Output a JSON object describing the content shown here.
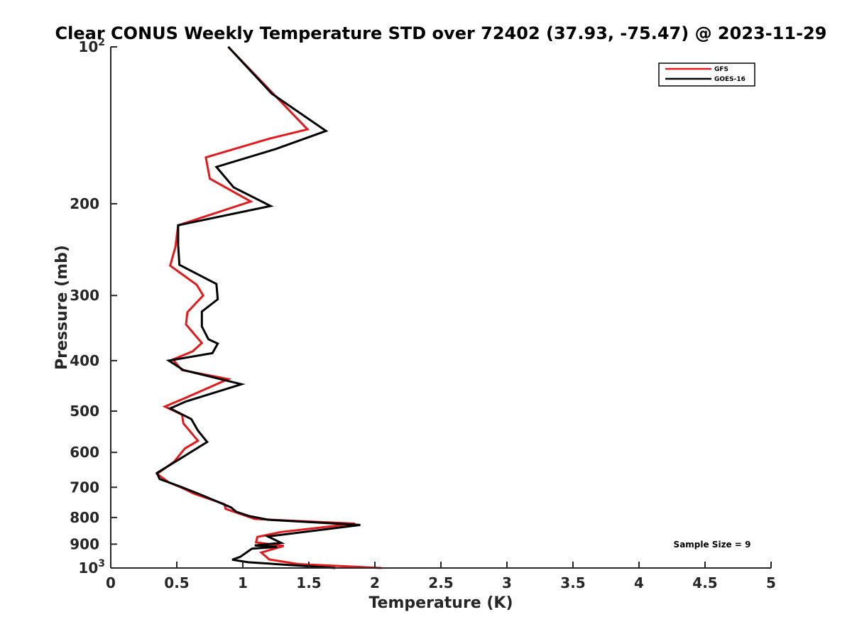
{
  "chart_data": {
    "type": "line",
    "title": "Clear CONUS Weekly Temperature STD over 72402 (37.93, -75.47) @ 2023-11-29",
    "xlabel": "Temperature (K)",
    "ylabel": "Pressure (mb)",
    "xlim": [
      0,
      5
    ],
    "ylim": [
      1000,
      100
    ],
    "y_scale": "log",
    "y_reversed": true,
    "x_ticks": [
      0,
      0.5,
      1,
      1.5,
      2,
      2.5,
      3,
      3.5,
      4,
      4.5,
      5
    ],
    "x_tick_labels": [
      "0",
      "0.5",
      "1",
      "1.5",
      "2",
      "2.5",
      "3",
      "3.5",
      "4",
      "4.5",
      "5"
    ],
    "y_ticks": [
      {
        "value": 100,
        "base": "10",
        "exp": "2"
      },
      {
        "value": 200,
        "label": "200"
      },
      {
        "value": 300,
        "label": "300"
      },
      {
        "value": 400,
        "label": "400"
      },
      {
        "value": 500,
        "label": "500"
      },
      {
        "value": 600,
        "label": "600"
      },
      {
        "value": 700,
        "label": "700"
      },
      {
        "value": 800,
        "label": "800"
      },
      {
        "value": 900,
        "label": "900"
      },
      {
        "value": 1000,
        "base": "10",
        "exp": "3"
      }
    ],
    "grid": false,
    "legend_position": "top-right",
    "annotation": "Sample Size = 9",
    "series": [
      {
        "name": "GFS",
        "color": "#e31a1c",
        "points": [
          [
            0.89,
            100
          ],
          [
            1.19,
            120
          ],
          [
            1.49,
            144
          ],
          [
            1.2,
            150
          ],
          [
            0.72,
            163
          ],
          [
            0.75,
            179
          ],
          [
            1.06,
            198
          ],
          [
            0.51,
            220
          ],
          [
            0.49,
            242
          ],
          [
            0.45,
            263
          ],
          [
            0.65,
            286
          ],
          [
            0.7,
            300
          ],
          [
            0.58,
            323
          ],
          [
            0.57,
            341
          ],
          [
            0.69,
            370
          ],
          [
            0.62,
            384
          ],
          [
            0.47,
            398
          ],
          [
            0.54,
            417
          ],
          [
            0.89,
            434
          ],
          [
            0.58,
            470
          ],
          [
            0.41,
            490
          ],
          [
            0.54,
            508
          ],
          [
            0.55,
            528
          ],
          [
            0.66,
            570
          ],
          [
            0.56,
            590
          ],
          [
            0.48,
            625
          ],
          [
            0.35,
            660
          ],
          [
            0.44,
            685
          ],
          [
            0.53,
            700
          ],
          [
            0.63,
            720
          ],
          [
            0.86,
            754
          ],
          [
            0.87,
            770
          ],
          [
            1.09,
            805
          ],
          [
            1.85,
            822
          ],
          [
            1.29,
            853
          ],
          [
            1.11,
            872
          ],
          [
            1.1,
            893
          ],
          [
            1.31,
            907
          ],
          [
            1.14,
            934
          ],
          [
            1.2,
            963
          ],
          [
            1.42,
            983
          ],
          [
            2.05,
            1000
          ]
        ]
      },
      {
        "name": "GOES-16",
        "color": "#000000",
        "points": [
          [
            0.89,
            100
          ],
          [
            1.22,
            123
          ],
          [
            1.63,
            145
          ],
          [
            1.25,
            157
          ],
          [
            0.8,
            170
          ],
          [
            0.93,
            186
          ],
          [
            1.21,
            202
          ],
          [
            0.51,
            220
          ],
          [
            0.51,
            240
          ],
          [
            0.52,
            262
          ],
          [
            0.8,
            285
          ],
          [
            0.81,
            305
          ],
          [
            0.69,
            322
          ],
          [
            0.69,
            344
          ],
          [
            0.74,
            364
          ],
          [
            0.81,
            371
          ],
          [
            0.77,
            387
          ],
          [
            0.44,
            400
          ],
          [
            0.55,
            417
          ],
          [
            0.99,
            444
          ],
          [
            0.57,
            479
          ],
          [
            0.45,
            494
          ],
          [
            0.61,
            518
          ],
          [
            0.66,
            545
          ],
          [
            0.73,
            573
          ],
          [
            0.49,
            625
          ],
          [
            0.35,
            657
          ],
          [
            0.37,
            675
          ],
          [
            0.52,
            697
          ],
          [
            0.68,
            723
          ],
          [
            0.91,
            765
          ],
          [
            0.95,
            780
          ],
          [
            1.05,
            795
          ],
          [
            1.19,
            808
          ],
          [
            1.89,
            827
          ],
          [
            1.19,
            870
          ],
          [
            1.29,
            895
          ],
          [
            1.09,
            905
          ],
          [
            1.26,
            911
          ],
          [
            1.07,
            918
          ],
          [
            0.98,
            952
          ],
          [
            0.92,
            964
          ],
          [
            1.04,
            975
          ],
          [
            1.7,
            1000
          ]
        ]
      }
    ]
  }
}
